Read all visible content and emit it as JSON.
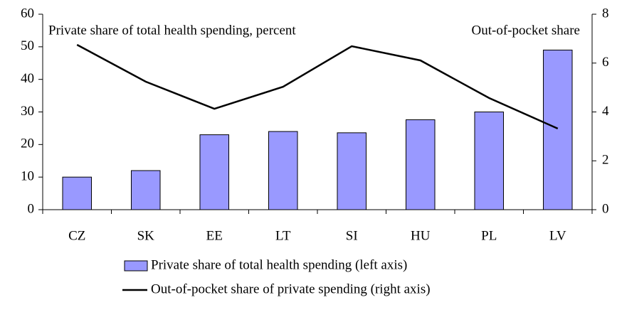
{
  "chart_data": {
    "type": "bar",
    "annotations": [
      "Private share of total health spending, percent",
      "Out-of-pocket share"
    ],
    "categories": [
      "CZ",
      "SK",
      "EE",
      "LT",
      "SI",
      "HU",
      "PL",
      "LV"
    ],
    "series": [
      {
        "name": "Private share of total health spending (left axis)",
        "type": "bar",
        "color": "#9999ff",
        "values": [
          10,
          12,
          23,
          24,
          23.6,
          27.6,
          30,
          49
        ]
      },
      {
        "name": "Out-of-pocket share of private spending (right axis)",
        "type": "line",
        "axis": "y2",
        "color": "#000000",
        "values": [
          6.75,
          5.24,
          4.13,
          5.03,
          6.69,
          6.11,
          4.57,
          3.32
        ]
      }
    ],
    "ylim": [
      0,
      60
    ],
    "yticks": [
      0,
      10,
      20,
      30,
      40,
      50,
      60
    ],
    "y2lim": [
      0,
      8
    ],
    "y2ticks": [
      0,
      2,
      4,
      6,
      8
    ]
  }
}
